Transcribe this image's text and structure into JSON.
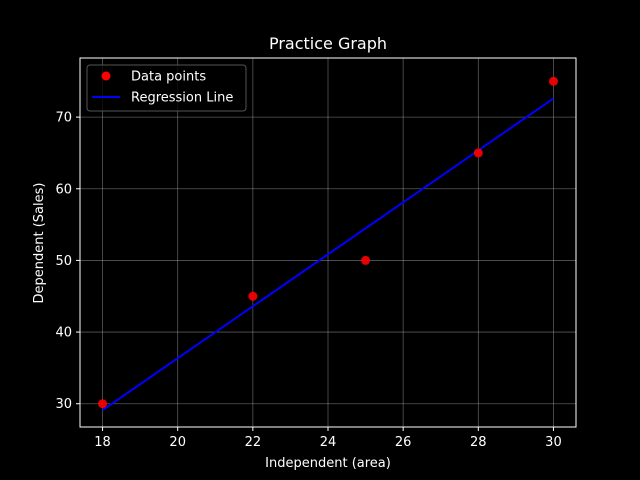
{
  "chart_data": {
    "type": "scatter",
    "title": "Practice Graph",
    "xlabel": "Independent (area)",
    "ylabel": "Dependent (Sales)",
    "xlim": [
      17.4,
      30.6
    ],
    "ylim": [
      26.75,
      78.25
    ],
    "x_ticks": [
      18,
      20,
      22,
      24,
      26,
      28,
      30
    ],
    "y_ticks": [
      30,
      40,
      50,
      60,
      70
    ],
    "grid": true,
    "legend_position": "upper-left",
    "series": [
      {
        "name": "Data points",
        "kind": "scatter",
        "color": "#ff0000",
        "points": [
          {
            "x": 18,
            "y": 30
          },
          {
            "x": 22,
            "y": 45
          },
          {
            "x": 25,
            "y": 50
          },
          {
            "x": 28,
            "y": 65
          },
          {
            "x": 30,
            "y": 75
          }
        ]
      },
      {
        "name": "Regression Line",
        "kind": "line",
        "color": "#0000ff",
        "points": [
          {
            "x": 18,
            "y": 29.1
          },
          {
            "x": 30,
            "y": 72.6
          }
        ]
      }
    ]
  }
}
